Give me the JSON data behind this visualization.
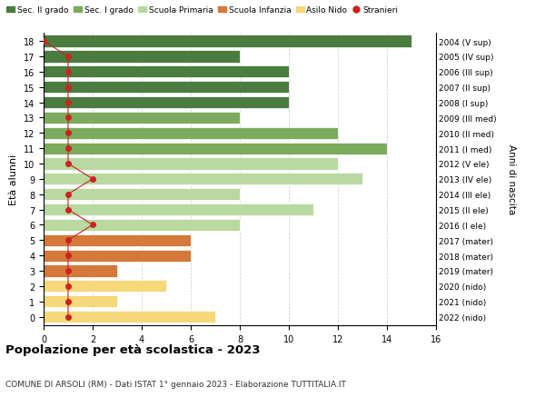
{
  "ages": [
    18,
    17,
    16,
    15,
    14,
    13,
    12,
    11,
    10,
    9,
    8,
    7,
    6,
    5,
    4,
    3,
    2,
    1,
    0
  ],
  "right_labels": [
    "2004 (V sup)",
    "2005 (IV sup)",
    "2006 (III sup)",
    "2007 (II sup)",
    "2008 (I sup)",
    "2009 (III med)",
    "2010 (II med)",
    "2011 (I med)",
    "2012 (V ele)",
    "2013 (IV ele)",
    "2014 (III ele)",
    "2015 (II ele)",
    "2016 (I ele)",
    "2017 (mater)",
    "2018 (mater)",
    "2019 (mater)",
    "2020 (nido)",
    "2021 (nido)",
    "2022 (nido)"
  ],
  "bar_values": [
    15,
    8,
    10,
    10,
    10,
    8,
    12,
    14,
    12,
    13,
    8,
    11,
    8,
    6,
    6,
    3,
    5,
    3,
    7
  ],
  "bar_colors": [
    "#4a7c3f",
    "#4a7c3f",
    "#4a7c3f",
    "#4a7c3f",
    "#4a7c3f",
    "#7dab5e",
    "#7dab5e",
    "#7dab5e",
    "#b8d9a0",
    "#b8d9a0",
    "#b8d9a0",
    "#b8d9a0",
    "#b8d9a0",
    "#d4793a",
    "#d4793a",
    "#d4793a",
    "#f5d87a",
    "#f5d87a",
    "#f5d87a"
  ],
  "stranieri_x": [
    0,
    1,
    1,
    1,
    1,
    1,
    1,
    1,
    1,
    2,
    1,
    1,
    2,
    1,
    1,
    1,
    1,
    1,
    1
  ],
  "stranieri_visible": [
    false,
    true,
    true,
    true,
    true,
    false,
    true,
    false,
    true,
    true,
    true,
    true,
    true,
    true,
    true,
    true,
    true,
    true,
    false
  ],
  "legend_labels": [
    "Sec. II grado",
    "Sec. I grado",
    "Scuola Primaria",
    "Scuola Infanzia",
    "Asilo Nido",
    "Stranieri"
  ],
  "legend_colors": [
    "#4a7c3f",
    "#7dab5e",
    "#b8d9a0",
    "#d4793a",
    "#f5d87a",
    "#cc2222"
  ],
  "ylabel": "Età alunni",
  "right_ylabel": "Anni di nascita",
  "title": "Popolazione per età scolastica - 2023",
  "subtitle": "COMUNE DI ARSOLI (RM) - Dati ISTAT 1° gennaio 2023 - Elaborazione TUTTITALIA.IT",
  "xlim": [
    0,
    16
  ],
  "background_color": "#ffffff",
  "grid_color": "#cccccc"
}
